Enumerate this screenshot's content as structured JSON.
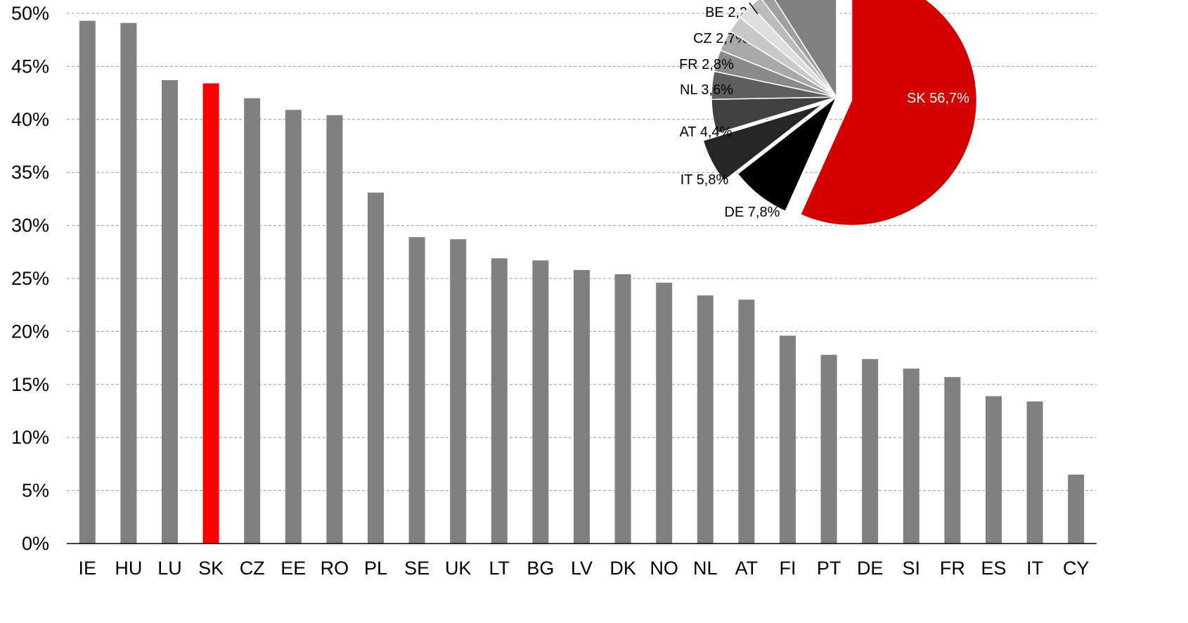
{
  "chart_data": [
    {
      "type": "bar",
      "categories": [
        "IE",
        "HU",
        "LU",
        "SK",
        "CZ",
        "EE",
        "RO",
        "PL",
        "SE",
        "UK",
        "LT",
        "BG",
        "LV",
        "DK",
        "NO",
        "NL",
        "AT",
        "FI",
        "PT",
        "DE",
        "SI",
        "FR",
        "ES",
        "IT",
        "CY"
      ],
      "values": [
        49.3,
        49.1,
        43.7,
        43.4,
        42.0,
        40.9,
        40.4,
        33.1,
        28.9,
        28.7,
        26.9,
        26.7,
        25.8,
        25.4,
        24.6,
        23.4,
        23.0,
        19.6,
        17.8,
        17.4,
        16.5,
        15.7,
        13.9,
        13.4,
        6.5
      ],
      "highlight_category": "SK",
      "y_ticks": [
        "0%",
        "5%",
        "10%",
        "15%",
        "20%",
        "25%",
        "30%",
        "35%",
        "40%",
        "45%",
        "50%"
      ],
      "ylim": [
        0,
        50
      ],
      "grid": true,
      "colors": {
        "bar": "#808080",
        "highlight": "#ff0000",
        "grid": "#999999",
        "axis": "#000000"
      }
    },
    {
      "type": "pie",
      "slices": [
        {
          "label": "SK 56,7%",
          "value": 56.7,
          "color": "#d40000",
          "text_color": "#ffffff",
          "exploded": true
        },
        {
          "label": "DE 7,8%",
          "value": 7.8,
          "color": "#000000",
          "text_color": "#000000",
          "exploded": false
        },
        {
          "label": "IT 5,8%",
          "value": 5.8,
          "color": "#262626",
          "text_color": "#000000",
          "exploded": true
        },
        {
          "label": "AT 4,4%",
          "value": 4.4,
          "color": "#404040",
          "text_color": "#000000",
          "exploded": false
        },
        {
          "label": "NL 3,6%",
          "value": 3.6,
          "color": "#5e5e5e",
          "text_color": "#000000",
          "exploded": false
        },
        {
          "label": "FR 2,8%",
          "value": 2.8,
          "color": "#8a8a8a",
          "text_color": "#000000",
          "exploded": false
        },
        {
          "label": "CZ 2,7%",
          "value": 2.7,
          "color": "#a8a8a8",
          "text_color": "#000000",
          "exploded": false
        },
        {
          "label": "BE 2,2%",
          "value": 2.2,
          "color": "#c8c8c8",
          "text_color": "#000000",
          "exploded": false
        },
        {
          "label": "",
          "value": 2.0,
          "color": "#dedede",
          "text_color": "#000000",
          "exploded": false
        },
        {
          "label": "",
          "value": 1.6,
          "color": "#bcbcbc",
          "text_color": "#000000",
          "exploded": false
        },
        {
          "label": "",
          "value": 1.4,
          "color": "#a0a0a0",
          "text_color": "#000000",
          "exploded": false
        },
        {
          "label": "",
          "value": 9.0,
          "color": "#808080",
          "text_color": "#000000",
          "exploded": false
        }
      ]
    }
  ]
}
